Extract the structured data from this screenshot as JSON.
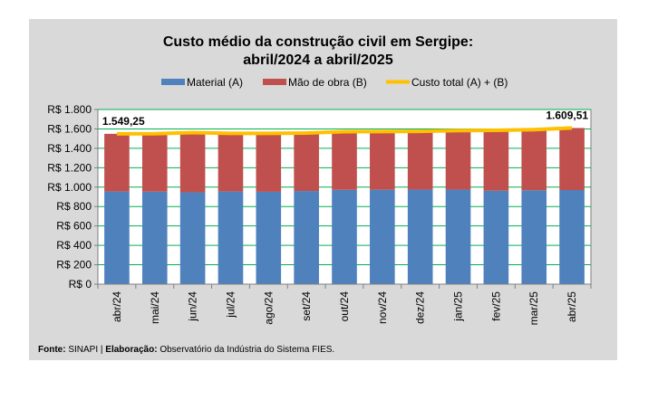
{
  "chart_data": {
    "type": "bar",
    "stacked": true,
    "title_lines": [
      "Custo médio da construção civil em Sergipe:",
      "abril/2024 a abril/2025"
    ],
    "categories": [
      "abr/24",
      "mai/24",
      "jun/24",
      "jul/24",
      "ago/24",
      "set/24",
      "out/24",
      "nov/24",
      "dez/24",
      "jan/25",
      "fev/25",
      "mar/25",
      "abr/25"
    ],
    "series": [
      {
        "name": "Material (A)",
        "type": "bar",
        "color": "#4f81bd",
        "values": [
          955,
          953,
          947,
          955,
          952,
          960,
          972,
          973,
          975,
          975,
          963,
          968,
          970
        ]
      },
      {
        "name": "Mão de obra (B)",
        "type": "bar",
        "color": "#c0504d",
        "values": [
          594.25,
          597,
          615,
          599,
          602,
          597,
          600,
          600,
          600,
          608,
          623,
          624,
          639.51
        ]
      },
      {
        "name": "Custo total (A) + (B)",
        "type": "line",
        "color": "#ffc000",
        "values": [
          1549.25,
          1550,
          1562,
          1554,
          1554,
          1557,
          1572,
          1573,
          1575,
          1583,
          1586,
          1592,
          1609.51
        ]
      }
    ],
    "ylim": [
      0,
      1800
    ],
    "yticks": [
      0,
      200,
      400,
      600,
      800,
      1000,
      1200,
      1400,
      1600,
      1800
    ],
    "ytick_labels": [
      "R$ 0",
      "R$ 200",
      "R$ 400",
      "R$ 600",
      "R$ 800",
      "R$ 1.000",
      "R$ 1.200",
      "R$ 1.400",
      "R$ 1.600",
      "R$ 1.800"
    ],
    "grid": true,
    "legend_position": "top",
    "annotations": [
      {
        "category": "abr/24",
        "text": "1.549,25"
      },
      {
        "category": "abr/25",
        "text": "1.609,51"
      }
    ]
  },
  "source": {
    "fonte_label": "Fonte:",
    "fonte_value": "SINAPI",
    "separator": "|",
    "elab_label": "Elaboração:",
    "elab_value": "Observatório da Indústria do Sistema FIES."
  }
}
